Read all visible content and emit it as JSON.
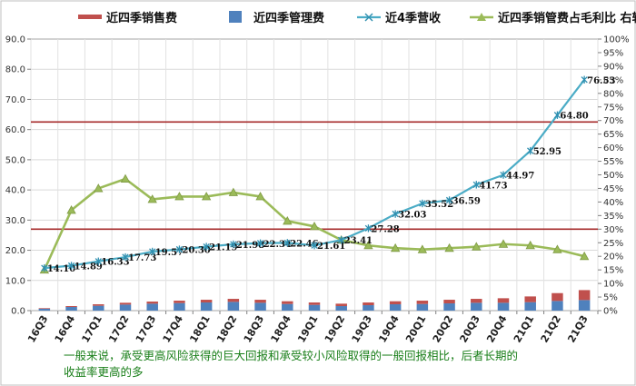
{
  "chart_data": {
    "type": "bar",
    "categories": [
      "16Q3",
      "16Q4",
      "17Q1",
      "17Q2",
      "17Q3",
      "17Q4",
      "18Q1",
      "18Q2",
      "18Q3",
      "18Q4",
      "19Q1",
      "19Q2",
      "19Q3",
      "19Q4",
      "20Q1",
      "20Q2",
      "20Q3",
      "20Q4",
      "21Q1",
      "21Q2",
      "21Q3"
    ],
    "left_axis": {
      "ylim": [
        0,
        90
      ],
      "ticks": [
        "0.0",
        "10.0",
        "20.0",
        "30.0",
        "40.0",
        "50.0",
        "60.0",
        "70.0",
        "80.0",
        "90.0"
      ]
    },
    "right_axis": {
      "ylim": [
        0,
        100
      ],
      "ticks": [
        "0%",
        "5%",
        "10%",
        "15%",
        "20%",
        "25%",
        "30%",
        "35%",
        "40%",
        "45%",
        "50%",
        "55%",
        "60%",
        "65%",
        "70%",
        "75%",
        "80%",
        "85%",
        "90%",
        "95%",
        "100%"
      ]
    },
    "series": [
      {
        "name": "近四季销售费",
        "type": "stacked-bar",
        "color": "#c0504d",
        "values": [
          0.2,
          0.3,
          0.5,
          0.6,
          0.7,
          0.8,
          0.9,
          1.0,
          1.0,
          0.9,
          0.8,
          0.8,
          0.9,
          1.0,
          1.1,
          1.2,
          1.3,
          1.5,
          1.9,
          2.6,
          3.3
        ]
      },
      {
        "name": "近四季管理费",
        "type": "stacked-bar",
        "color": "#4f81bd",
        "values": [
          0.6,
          1.2,
          1.6,
          2.0,
          2.3,
          2.5,
          2.7,
          2.9,
          2.6,
          2.2,
          1.9,
          1.5,
          1.8,
          2.1,
          2.2,
          2.4,
          2.6,
          2.6,
          2.8,
          3.2,
          3.5
        ]
      },
      {
        "name": "近4季营收",
        "type": "line",
        "color": "#4bacc6",
        "values": [
          14.1,
          14.89,
          16.33,
          17.73,
          19.57,
          20.3,
          21.19,
          21.98,
          22.34,
          22.46,
          21.61,
          23.41,
          27.28,
          32.03,
          35.52,
          36.59,
          41.73,
          44.97,
          52.95,
          64.8,
          76.53
        ],
        "labels": [
          "14.10",
          "14.89",
          "16.33",
          "17.73",
          "19.57",
          "20.30",
          "21.19",
          "21.98",
          "22.34",
          "22.46",
          "21.61",
          "23.41",
          "27.28",
          "32.03",
          "35.52",
          "36.59",
          "41.73",
          "44.97",
          "52.95",
          "64.80",
          "76.53"
        ]
      },
      {
        "name": "近四季销管费占毛利比 右轴",
        "type": "line",
        "axis": "right",
        "color": "#9bbb59",
        "values": [
          15,
          37,
          45,
          48.5,
          41,
          42,
          42,
          43.5,
          42,
          33,
          31,
          26,
          24,
          23,
          22.5,
          23,
          23.5,
          24.5,
          24,
          22.5,
          20
        ]
      }
    ],
    "reference_lines": [
      {
        "color": "#a52a2a",
        "value": 62.5
      },
      {
        "color": "#a52a2a",
        "value": 27
      }
    ]
  },
  "caption": {
    "line1": "一般来说，承受更高风险获得的巨大回报和承受较小风险取得的一般回报相比，后者长期的",
    "line2": "收益率更高的多"
  }
}
